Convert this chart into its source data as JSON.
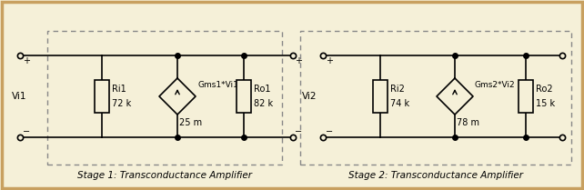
{
  "bg_color": "#f5f0d8",
  "border_color": "#c8a060",
  "dashed_color": "#888888",
  "wire_color": "#000000",
  "text_color": "#000000",
  "stage1_label": "Stage 1: Transconductance Amplifier",
  "stage2_label": "Stage 2: Transconductance Amplifier",
  "vi1_label": "Vi1",
  "vi2_label": "Vi2",
  "ri1_top": "Ri1",
  "ri1_bot": "72 k",
  "ri2_top": "Ri2",
  "ri2_bot": "74 k",
  "ro1_top": "Ro1",
  "ro1_bot": "82 k",
  "ro2_top": "Ro2",
  "ro2_bot": "15 k",
  "gm1_label": "Gms1*Vi1",
  "gm2_label": "Gms2*Vi2",
  "gm1_val": "25 m",
  "gm2_val": "78 m"
}
